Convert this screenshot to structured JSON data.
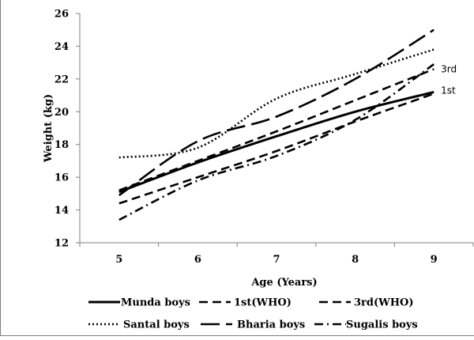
{
  "chart_data": {
    "type": "line",
    "title": "",
    "xlabel": "Age (Years)",
    "ylabel": "Weight (kg)",
    "xlim": [
      4.5,
      9.5
    ],
    "ylim": [
      12,
      26
    ],
    "xticks": [
      5,
      6,
      7,
      8,
      9
    ],
    "yticks": [
      12,
      14,
      16,
      18,
      20,
      22,
      24,
      26
    ],
    "grid": false,
    "legend_position": "bottom",
    "series": [
      {
        "name": "Munda boys",
        "style": "solid",
        "x": [
          5,
          6,
          7,
          8,
          9
        ],
        "y": [
          15.1,
          16.9,
          18.5,
          20.0,
          21.2
        ]
      },
      {
        "name": "1st(WHO)",
        "style": "dash",
        "x": [
          5,
          6,
          7,
          8,
          9
        ],
        "y": [
          14.4,
          16.0,
          17.6,
          19.4,
          21.1
        ]
      },
      {
        "name": "3rd(WHO)",
        "style": "dash",
        "x": [
          5,
          6,
          7,
          8,
          9
        ],
        "y": [
          15.2,
          17.0,
          18.8,
          20.7,
          22.6
        ]
      },
      {
        "name": "Santal boys",
        "style": "dot",
        "x": [
          5,
          6,
          7,
          8,
          9
        ],
        "y": [
          17.2,
          17.8,
          20.8,
          22.3,
          23.8
        ]
      },
      {
        "name": "Bharia boys",
        "style": "longdash",
        "x": [
          5,
          6,
          7,
          8,
          9
        ],
        "y": [
          14.9,
          18.2,
          19.7,
          22.0,
          25.0
        ]
      },
      {
        "name": "Sugalis boys",
        "style": "dashdot",
        "x": [
          5,
          6,
          7,
          8,
          9
        ],
        "y": [
          13.4,
          15.8,
          17.3,
          19.5,
          22.9
        ]
      }
    ],
    "annotations": [
      {
        "text": "3rd",
        "x": 9.05,
        "y": 22.6
      },
      {
        "text": "1st",
        "x": 9.05,
        "y": 21.3
      }
    ]
  },
  "colors": {
    "lines": "#000000",
    "axes": "#7f7f7f",
    "background": "#ffffff"
  }
}
